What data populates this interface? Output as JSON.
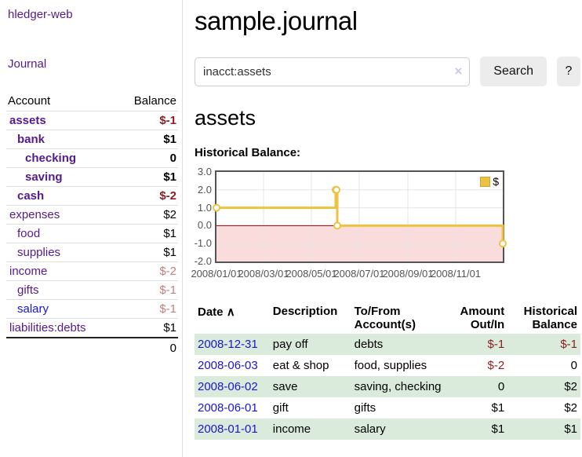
{
  "sidebar": {
    "brand": "hledger-web",
    "nav": {
      "journal": "Journal"
    },
    "accounts_table": {
      "header": {
        "account": "Account",
        "balance": "Balance"
      },
      "rows": [
        {
          "name": "assets",
          "balance": "$-1"
        },
        {
          "name": "bank",
          "balance": "$1"
        },
        {
          "name": "checking",
          "balance": "0"
        },
        {
          "name": "saving",
          "balance": "$1"
        },
        {
          "name": "cash",
          "balance": "$-2"
        },
        {
          "name": "expenses",
          "balance": "$2"
        },
        {
          "name": "food",
          "balance": "$1"
        },
        {
          "name": "supplies",
          "balance": "$1"
        },
        {
          "name": "income",
          "balance": "$-2"
        },
        {
          "name": "gifts",
          "balance": "$-1"
        },
        {
          "name": "salary",
          "balance": "$-1"
        },
        {
          "name": "liabilities:debts",
          "balance": "$1"
        }
      ],
      "total": "0"
    }
  },
  "header": {
    "title": "sample.journal"
  },
  "search": {
    "value": "inacct:assets",
    "clear_icon": "×",
    "button": "Search",
    "help_button": "?"
  },
  "main": {
    "account_heading": "assets",
    "chart_label": "Historical Balance:"
  },
  "chart_data": {
    "type": "line",
    "step": true,
    "title": "Historical Balance:",
    "x": [
      "2008-01-01",
      "2008-06-01",
      "2008-06-02",
      "2008-06-03",
      "2008-12-31"
    ],
    "series": [
      {
        "name": "$",
        "values": [
          1,
          2,
          2,
          0,
          -1
        ]
      }
    ],
    "xrange": [
      "2008-01-01",
      "2008-12-31"
    ],
    "ylim": [
      -2,
      3
    ],
    "yticks": [
      {
        "v": 3,
        "label": "3.0"
      },
      {
        "v": 2,
        "label": "2.0"
      },
      {
        "v": 1,
        "label": "1.0"
      },
      {
        "v": 0,
        "label": "0.0"
      },
      {
        "v": -1,
        "label": "-1.0"
      },
      {
        "v": -2,
        "label": "-2.0"
      }
    ],
    "xticks": [
      {
        "d": "2008-01-01",
        "label": "2008/01/01"
      },
      {
        "d": "2008-03-01",
        "label": "2008/03/01"
      },
      {
        "d": "2008-05-01",
        "label": "2008/05/01"
      },
      {
        "d": "2008-07-01",
        "label": "2008/07/01"
      },
      {
        "d": "2008-09-01",
        "label": "2008/09/01"
      },
      {
        "d": "2008-11-01",
        "label": "2008/11/01"
      }
    ],
    "legend": {
      "position": "top-right",
      "label": "$"
    },
    "grid": true,
    "colors": {
      "line": "#edc240",
      "marker_fill": "#ffffff",
      "negative_fill": "#fbdcdc",
      "zero_line": "#8b0000",
      "grid": "#e5e5e5"
    }
  },
  "transactions": {
    "header": {
      "date": "Date",
      "sort_icon": "∧",
      "description": "Description",
      "account_line1": "To/From",
      "account_line2": "Account(s)",
      "amount_line1": "Amount",
      "amount_line2": "Out/In",
      "balance_line1": "Historical",
      "balance_line2": "Balance"
    },
    "rows": [
      {
        "date": "2008-12-31",
        "description": "pay off",
        "accounts": "debts",
        "amount": "$-1",
        "balance": "$-1"
      },
      {
        "date": "2008-06-03",
        "description": "eat & shop",
        "accounts": "food, supplies",
        "amount": "$-2",
        "balance": "0"
      },
      {
        "date": "2008-06-02",
        "description": "save",
        "accounts": "saving, checking",
        "amount": "0",
        "balance": "$2"
      },
      {
        "date": "2008-06-01",
        "description": "gift",
        "accounts": "gifts",
        "amount": "$1",
        "balance": "$2"
      },
      {
        "date": "2008-01-01",
        "description": "income",
        "accounts": "salary",
        "amount": "$1",
        "balance": "$1"
      }
    ]
  }
}
